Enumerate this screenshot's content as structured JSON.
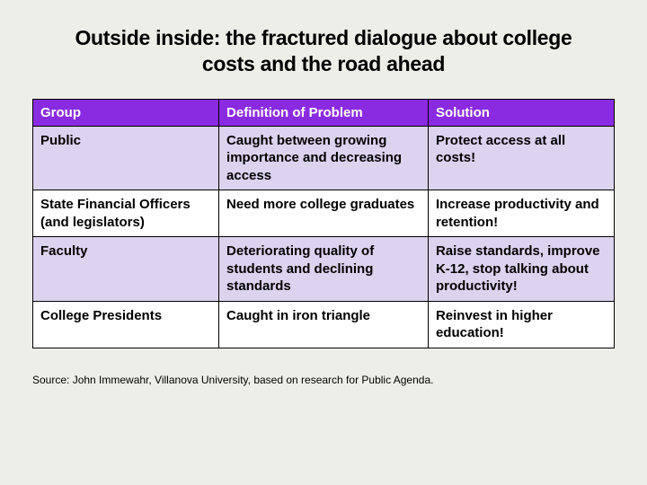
{
  "title": "Outside inside: the fractured dialogue about college costs and the road ahead",
  "table": {
    "columns": [
      "Group",
      "Definition of Problem",
      "Solution"
    ],
    "column_widths": [
      "32%",
      "36%",
      "32%"
    ],
    "header_bg": "#8a2be2",
    "header_fg": "#ffffff",
    "row_alt_bg_purple": "#dcd3ef",
    "row_alt_bg_white": "#ffffff",
    "border_color": "#000000",
    "cell_fontsize": 15,
    "cell_fontweight": "bold",
    "rows": [
      {
        "group": "Public",
        "problem": "Caught between growing importance and decreasing access",
        "solution": "Protect access at all costs!",
        "bg": "purple"
      },
      {
        "group": "State Financial Officers (and legislators)",
        "problem": "Need more college graduates",
        "solution": "Increase productivity and retention!",
        "bg": "white"
      },
      {
        "group": "Faculty",
        "problem": "Deteriorating quality of students and declining standards",
        "solution": "Raise standards, improve K-12, stop talking about productivity!",
        "bg": "purple"
      },
      {
        "group": "College Presidents",
        "problem": "Caught in iron triangle",
        "solution": "Reinvest in higher education!",
        "bg": "white"
      }
    ]
  },
  "source": "Source: John Immewahr, Villanova University, based on research for Public Agenda.",
  "background_color": "#eeeee8"
}
